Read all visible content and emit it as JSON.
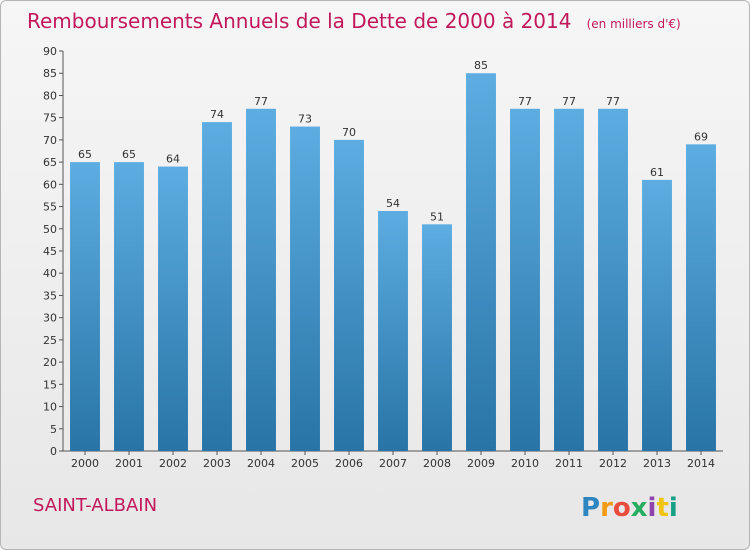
{
  "header": {
    "title": "Remboursements Annuels de la Dette de 2000 à 2014",
    "subtitle": "(en milliers d'€)"
  },
  "footer": {
    "town": "SAINT-ALBAIN",
    "logo_text": "Proxiti",
    "logo_colors": [
      "#2e86c1",
      "#f39c12",
      "#e74c3c",
      "#27ae60",
      "#8e44ad",
      "#f1c40f",
      "#16a085"
    ]
  },
  "colors": {
    "accent": "#c2185b",
    "bar_top": "#5dade2",
    "bar_bottom": "#2874a6"
  },
  "chart_data": {
    "type": "bar",
    "title": "Remboursements Annuels de la Dette de 2000 à 2014",
    "subtitle": "(en milliers d'€)",
    "categories": [
      "2000",
      "2001",
      "2002",
      "2003",
      "2004",
      "2005",
      "2006",
      "2007",
      "2008",
      "2009",
      "2010",
      "2011",
      "2012",
      "2013",
      "2014"
    ],
    "values": [
      65,
      65,
      64,
      74,
      77,
      73,
      70,
      54,
      51,
      85,
      77,
      77,
      77,
      61,
      69
    ],
    "ylim": [
      0,
      90
    ],
    "yticks": [
      0,
      5,
      10,
      15,
      20,
      25,
      30,
      35,
      40,
      45,
      50,
      55,
      60,
      65,
      70,
      75,
      80,
      85,
      90
    ],
    "grid": false,
    "xlabel": "",
    "ylabel": ""
  }
}
